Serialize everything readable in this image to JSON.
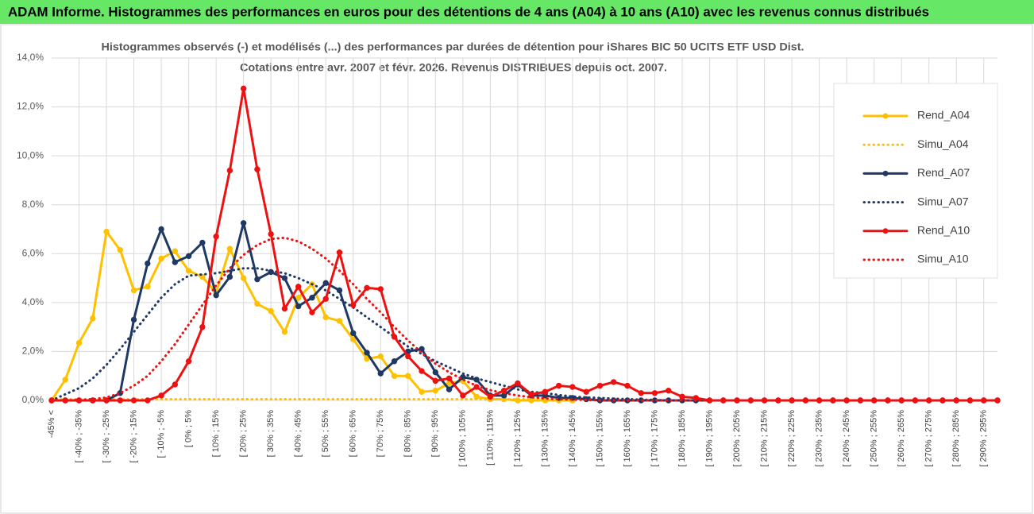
{
  "header": {
    "title": "ADAM Informe. Histogrammes des performances en euros pour des détentions de 4 ans (A04) à 10 ans (A10) avec les revenus connus distribués"
  },
  "chart_data": {
    "type": "line",
    "title": "Histogrammes observés (-) et modélisés (...) des performances par durées de détention pour iShares BIC 50 UCITS ETF USD Dist.",
    "subtitle": "Cotations entre avr. 2007 et févr. 2026. Revenus DISTRIBUES depuis oct. 2007.",
    "categories": [
      "-45% <",
      null,
      "[ -40% ; -35%",
      null,
      "[ -30% ; -25%",
      null,
      "[ -20% ; -15%",
      null,
      "[ -10% ; -5%",
      null,
      "[ 0% ; 5%",
      null,
      "[ 10% ; 15%",
      null,
      "[ 20% ; 25%",
      null,
      "[ 30% ; 35%",
      null,
      "[ 40% ; 45%",
      null,
      "[ 50% ; 55%",
      null,
      "[ 60% ; 65%",
      null,
      "[ 70% ; 75%",
      null,
      "[ 80% ; 85%",
      null,
      "[ 90% ; 95%",
      null,
      "[ 100% ; 105%",
      null,
      "[ 110% ; 115%",
      null,
      "[ 120% ; 125%",
      null,
      "[ 130% ; 135%",
      null,
      "[ 140% ; 145%",
      null,
      "[ 150% ; 155%",
      null,
      "[ 160% ; 165%",
      null,
      "[ 170% ; 175%",
      null,
      "[ 180% ; 185%",
      null,
      "[ 190% ; 195%",
      null,
      "[ 200% ; 205%",
      null,
      "[ 210% ; 215%",
      null,
      "[ 220% ; 225%",
      null,
      "[ 230% ; 235%",
      null,
      "[ 240% ; 245%",
      null,
      "[ 250% ; 255%",
      null,
      "[ 260% ; 265%",
      null,
      "[ 270% ; 275%",
      null,
      "[ 280% ; 285%",
      null,
      "[ 290% ; 295%",
      null
    ],
    "series": [
      {
        "name": "Rend_A04",
        "color": "#ffc000",
        "style": "solid",
        "markers": true,
        "values": [
          0,
          0.85,
          2.35,
          3.35,
          6.9,
          6.15,
          4.5,
          4.65,
          5.8,
          6.1,
          5.3,
          5.05,
          4.4,
          6.2,
          5.0,
          3.95,
          3.65,
          2.8,
          4.2,
          4.75,
          3.4,
          3.25,
          2.5,
          1.7,
          1.8,
          1.0,
          1.0,
          0.35,
          0.4,
          0.7,
          0.8,
          0.15,
          0.05,
          0.05,
          0,
          0,
          0,
          0,
          0,
          null,
          null,
          null,
          null,
          null,
          null,
          null,
          null,
          null,
          null,
          null,
          null,
          null,
          null,
          null,
          null,
          null,
          null,
          null,
          null,
          null,
          null,
          null,
          null,
          null,
          null,
          null,
          null,
          null,
          null,
          null
        ]
      },
      {
        "name": "Simu_A04",
        "color": "#ffc000",
        "style": "dotted",
        "markers": false,
        "values": [
          0.05,
          0.05,
          0.05,
          0.05,
          0.05,
          0.05,
          0.05,
          0.05,
          0.05,
          0.05,
          0.05,
          0.05,
          0.05,
          0.05,
          0.05,
          0.05,
          0.05,
          0.05,
          0.05,
          0.05,
          0.05,
          0.05,
          0.05,
          0.05,
          0.05,
          0.05,
          0.05,
          0.05,
          0.05,
          0.05,
          0.05,
          0.05,
          0.05,
          0.05,
          0.05,
          0.05,
          0.05,
          0.05,
          0.05,
          null,
          null,
          null,
          null,
          null,
          null,
          null,
          null,
          null,
          null,
          null,
          null,
          null,
          null,
          null,
          null,
          null,
          null,
          null,
          null,
          null,
          null,
          null,
          null,
          null,
          null,
          null,
          null,
          null,
          null,
          null
        ]
      },
      {
        "name": "Rend_A07",
        "color": "#1f3864",
        "style": "solid",
        "markers": true,
        "values": [
          0,
          0,
          0,
          0,
          0,
          0.3,
          3.3,
          5.6,
          7.0,
          5.65,
          5.9,
          6.45,
          4.3,
          5.05,
          7.25,
          4.95,
          5.25,
          5.0,
          3.85,
          4.2,
          4.8,
          4.5,
          2.75,
          1.95,
          1.1,
          1.6,
          2.0,
          2.1,
          1.15,
          0.45,
          0.95,
          0.85,
          0.2,
          0.2,
          0.65,
          0.2,
          0.2,
          0.1,
          0.1,
          0.05,
          0,
          0,
          0,
          0,
          0,
          0,
          0,
          0,
          0,
          0,
          0,
          0,
          0,
          0,
          0,
          0,
          0,
          0,
          0,
          0,
          0,
          0,
          0,
          0,
          0,
          0,
          0,
          0,
          0,
          0
        ]
      },
      {
        "name": "Simu_A07",
        "color": "#1f3864",
        "style": "dotted",
        "markers": false,
        "values": [
          0,
          0.25,
          0.5,
          0.9,
          1.45,
          2.1,
          2.8,
          3.5,
          4.2,
          4.75,
          5.1,
          5.15,
          5.2,
          5.3,
          5.4,
          5.4,
          5.3,
          5.2,
          5.0,
          4.75,
          4.5,
          4.15,
          3.8,
          3.4,
          3.0,
          2.6,
          2.2,
          1.9,
          1.6,
          1.35,
          1.1,
          0.9,
          0.75,
          0.6,
          0.45,
          0.35,
          0.3,
          0.22,
          0.16,
          0.12,
          0.1,
          0.07,
          0.05,
          0.03,
          0.02,
          0,
          0,
          0,
          0,
          0,
          0,
          0,
          0,
          0,
          0,
          0,
          0,
          0,
          0,
          0,
          0,
          0,
          0,
          0,
          0,
          0,
          0,
          0,
          0,
          0
        ]
      },
      {
        "name": "Rend_A10",
        "color": "#ee1111",
        "style": "solid",
        "markers": true,
        "values": [
          0,
          0,
          0,
          0,
          0,
          0,
          0,
          0,
          0.2,
          0.65,
          1.6,
          3.0,
          6.7,
          9.4,
          12.75,
          9.45,
          6.8,
          3.75,
          4.65,
          3.6,
          4.15,
          6.05,
          3.9,
          4.6,
          4.55,
          2.6,
          1.8,
          1.2,
          0.8,
          0.9,
          0.2,
          0.55,
          0.15,
          0.4,
          0.7,
          0.25,
          0.35,
          0.6,
          0.55,
          0.35,
          0.6,
          0.75,
          0.6,
          0.3,
          0.3,
          0.4,
          0.15,
          0.1,
          0,
          0,
          0,
          0,
          0,
          0,
          0,
          0,
          0,
          0,
          0,
          0,
          0,
          0,
          0,
          0,
          0,
          0,
          0,
          0,
          0,
          0
        ]
      },
      {
        "name": "Simu_A10",
        "color": "#ee1111",
        "style": "dotted",
        "markers": false,
        "values": [
          0,
          0,
          0.02,
          0.05,
          0.12,
          0.3,
          0.6,
          1.0,
          1.6,
          2.3,
          3.1,
          3.9,
          4.7,
          5.4,
          5.95,
          6.35,
          6.6,
          6.65,
          6.5,
          6.2,
          5.8,
          5.3,
          4.75,
          4.15,
          3.6,
          3.0,
          2.45,
          1.95,
          1.5,
          1.15,
          0.85,
          0.6,
          0.42,
          0.3,
          0.2,
          0.13,
          0.08,
          0.05,
          0.03,
          0.02,
          0,
          0,
          0,
          0,
          0,
          0,
          0,
          0,
          0,
          0,
          0,
          0,
          0,
          0,
          0,
          0,
          0,
          0,
          0,
          0,
          0,
          0,
          0,
          0,
          0,
          0,
          0,
          0,
          0,
          0
        ]
      }
    ],
    "ylim": [
      0,
      14
    ],
    "yticks": [
      {
        "value": 0,
        "label": "0,0%"
      },
      {
        "value": 2,
        "label": "2,0%"
      },
      {
        "value": 4,
        "label": "4,0%"
      },
      {
        "value": 6,
        "label": "6,0%"
      },
      {
        "value": 8,
        "label": "8,0%"
      },
      {
        "value": 10,
        "label": "10,0%"
      },
      {
        "value": 12,
        "label": "12,0%"
      },
      {
        "value": 14,
        "label": "14,0%"
      }
    ],
    "grid": true,
    "legend": "right"
  }
}
